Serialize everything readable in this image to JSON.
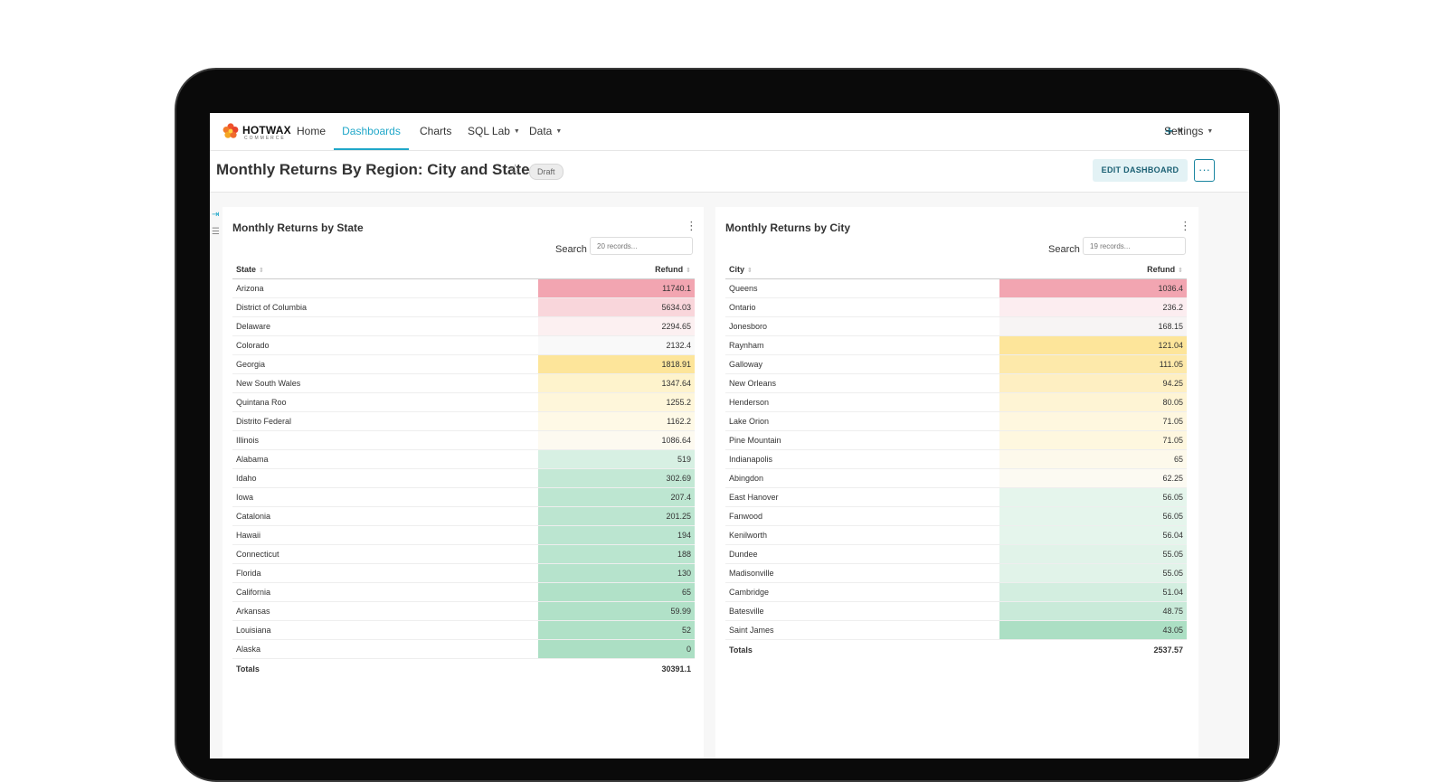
{
  "nav": {
    "brand": "HOTWAX",
    "brand_sub": "COMMERCE",
    "items": [
      {
        "label": "Home",
        "active": false,
        "dropdown": false
      },
      {
        "label": "Dashboards",
        "active": true,
        "dropdown": false
      },
      {
        "label": "Charts",
        "active": false,
        "dropdown": false
      },
      {
        "label": "SQL Lab",
        "active": false,
        "dropdown": true
      },
      {
        "label": "Data",
        "active": false,
        "dropdown": true
      }
    ],
    "plus_icon": "+",
    "settings_label": "Settings"
  },
  "header": {
    "title": "Monthly Returns By Region: City and State",
    "badge": "Draft",
    "edit_label": "EDIT DASHBOARD",
    "more_label": "···"
  },
  "colors": {
    "accent": "#20a7c9",
    "red_high": "#f4a7b3",
    "yellow_high": "#fde59a",
    "green_high": "#a8dfc3"
  },
  "state_chart": {
    "title": "Monthly Returns by State",
    "search_label": "Search",
    "search_placeholder": "20 records...",
    "columns": [
      "State",
      "Refund"
    ],
    "rows": [
      {
        "name": "Arizona",
        "value": "11740.1",
        "bg": "#f2a5b1"
      },
      {
        "name": "District of Columbia",
        "value": "5634.03",
        "bg": "#f9d6db"
      },
      {
        "name": "Delaware",
        "value": "2294.65",
        "bg": "#fcf0f1"
      },
      {
        "name": "Colorado",
        "value": "2132.4",
        "bg": "#f9f9f9"
      },
      {
        "name": "Georgia",
        "value": "1818.91",
        "bg": "#fde59a"
      },
      {
        "name": "New South Wales",
        "value": "1347.64",
        "bg": "#fef3cc"
      },
      {
        "name": "Quintana Roo",
        "value": "1255.2",
        "bg": "#fef6da"
      },
      {
        "name": "Distrito Federal",
        "value": "1162.2",
        "bg": "#fef9e6"
      },
      {
        "name": "Illinois",
        "value": "1086.64",
        "bg": "#fdfaf0"
      },
      {
        "name": "Alabama",
        "value": "519",
        "bg": "#d7f0e3"
      },
      {
        "name": "Idaho",
        "value": "302.69",
        "bg": "#c3e8d5"
      },
      {
        "name": "Iowa",
        "value": "207.4",
        "bg": "#bde6d1"
      },
      {
        "name": "Catalonia",
        "value": "201.25",
        "bg": "#bce5d0"
      },
      {
        "name": "Hawaii",
        "value": "194",
        "bg": "#bbe5d0"
      },
      {
        "name": "Connecticut",
        "value": "188",
        "bg": "#bae5cf"
      },
      {
        "name": "Florida",
        "value": "130",
        "bg": "#b6e3cc"
      },
      {
        "name": "California",
        "value": "65",
        "bg": "#b1e1c8"
      },
      {
        "name": "Arkansas",
        "value": "59.99",
        "bg": "#b1e1c8"
      },
      {
        "name": "Louisiana",
        "value": "52",
        "bg": "#b0e1c7"
      },
      {
        "name": "Alaska",
        "value": "0",
        "bg": "#acdfc4"
      }
    ],
    "totals_label": "Totals",
    "totals_value": "30391.1"
  },
  "city_chart": {
    "title": "Monthly Returns by City",
    "search_label": "Search",
    "search_placeholder": "19 records...",
    "columns": [
      "City",
      "Refund"
    ],
    "rows": [
      {
        "name": "Queens",
        "value": "1036.4",
        "bg": "#f2a5b1"
      },
      {
        "name": "Ontario",
        "value": "236.2",
        "bg": "#fcedf0"
      },
      {
        "name": "Jonesboro",
        "value": "168.15",
        "bg": "#f7f4f4"
      },
      {
        "name": "Raynham",
        "value": "121.04",
        "bg": "#fde59a"
      },
      {
        "name": "Galloway",
        "value": "111.05",
        "bg": "#fde9aa"
      },
      {
        "name": "New Orleans",
        "value": "94.25",
        "bg": "#feefc2"
      },
      {
        "name": "Henderson",
        "value": "80.05",
        "bg": "#fef4d4"
      },
      {
        "name": "Lake Orion",
        "value": "71.05",
        "bg": "#fef7df"
      },
      {
        "name": "Pine Mountain",
        "value": "71.05",
        "bg": "#fef7df"
      },
      {
        "name": "Indianapolis",
        "value": "65",
        "bg": "#fdf9eb"
      },
      {
        "name": "Abingdon",
        "value": "62.25",
        "bg": "#fcfaf2"
      },
      {
        "name": "East Hanover",
        "value": "56.05",
        "bg": "#e5f5ec"
      },
      {
        "name": "Fanwood",
        "value": "56.05",
        "bg": "#e5f5ec"
      },
      {
        "name": "Kenilworth",
        "value": "56.04",
        "bg": "#e5f5ec"
      },
      {
        "name": "Dundee",
        "value": "55.05",
        "bg": "#e1f3e9"
      },
      {
        "name": "Madisonville",
        "value": "55.05",
        "bg": "#e1f3e9"
      },
      {
        "name": "Cambridge",
        "value": "51.04",
        "bg": "#d3eee0"
      },
      {
        "name": "Batesville",
        "value": "48.75",
        "bg": "#c9ead9"
      },
      {
        "name": "Saint James",
        "value": "43.05",
        "bg": "#acdfc4"
      }
    ],
    "totals_label": "Totals",
    "totals_value": "2537.57"
  }
}
